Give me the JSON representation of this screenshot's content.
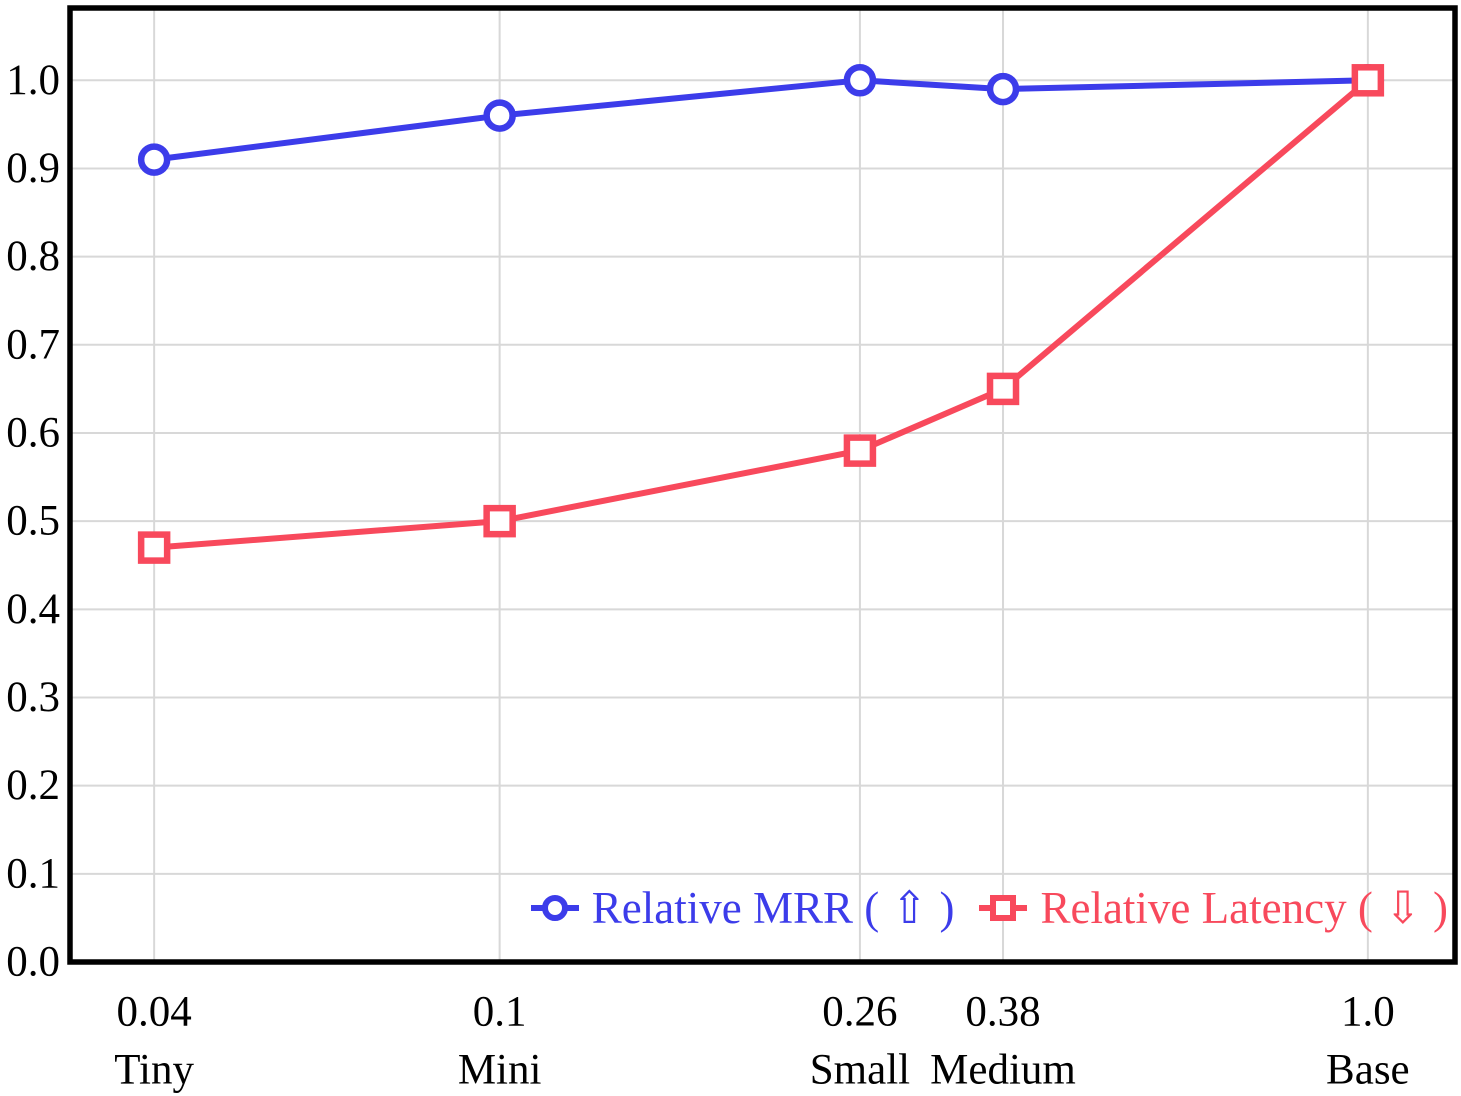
{
  "chart_data": {
    "type": "line",
    "title": "",
    "xlabel": "",
    "ylabel": "",
    "x_scale": "log",
    "grid": true,
    "legend_position": "lower-right-inside",
    "x": [
      0.04,
      0.1,
      0.26,
      0.38,
      1.0
    ],
    "x_tick_value_labels": [
      "0.04",
      "0.1",
      "0.26",
      "0.38",
      "1.0"
    ],
    "x_tick_name_labels": [
      "Tiny",
      "Mini",
      "Small",
      "Medium",
      "Base"
    ],
    "y_tick_labels": [
      "0.0",
      "0.1",
      "0.2",
      "0.3",
      "0.4",
      "0.5",
      "0.6",
      "0.7",
      "0.8",
      "0.9",
      "1.0"
    ],
    "y_tick_values": [
      0,
      0.1,
      0.2,
      0.3,
      0.4,
      0.5,
      0.6,
      0.7,
      0.8,
      0.9,
      1.0
    ],
    "xlim": [
      0.032,
      1.26
    ],
    "ylim": [
      0,
      1.082
    ],
    "series": [
      {
        "name": "Relative MRR ( ⇧ )",
        "marker": "circle",
        "color": "#3c3cea",
        "values": [
          0.91,
          0.96,
          1.0,
          0.99,
          1.0
        ]
      },
      {
        "name": "Relative Latency ( ⇩ )",
        "marker": "square",
        "color": "#f8495c",
        "values": [
          0.47,
          0.5,
          0.58,
          0.65,
          1.0
        ]
      }
    ],
    "colors": {
      "background": "#ffffff",
      "frame": "#000000",
      "grid": "#d8d8d8",
      "marker_fill": "#ffffff"
    }
  }
}
